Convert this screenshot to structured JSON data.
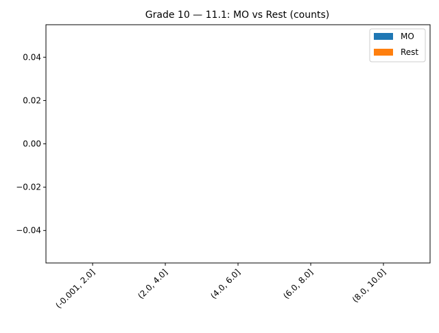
{
  "chart_data": {
    "type": "bar",
    "title": "Grade 10 — 11.1: MO vs Rest (counts)",
    "xlabel": "",
    "ylabel": "",
    "categories": [
      "(-0.001, 2.0]",
      "(2.0, 4.0]",
      "(4.0, 6.0]",
      "(6.0, 8.0]",
      "(8.0, 10.0]"
    ],
    "series": [
      {
        "name": "MO",
        "values": [
          0,
          0,
          0,
          0,
          0
        ],
        "color": "#1f77b4"
      },
      {
        "name": "Rest",
        "values": [
          0,
          0,
          0,
          0,
          0
        ],
        "color": "#ff7f0e"
      }
    ],
    "ylim": [
      -0.055,
      0.055
    ],
    "yticks": [
      -0.04,
      -0.02,
      0.0,
      0.02,
      0.04
    ],
    "ytick_labels": [
      "−0.04",
      "−0.02",
      "0.00",
      "0.02",
      "0.04"
    ],
    "legend_position": "top-right",
    "grid": false,
    "x_tick_rotation_deg": 45
  }
}
